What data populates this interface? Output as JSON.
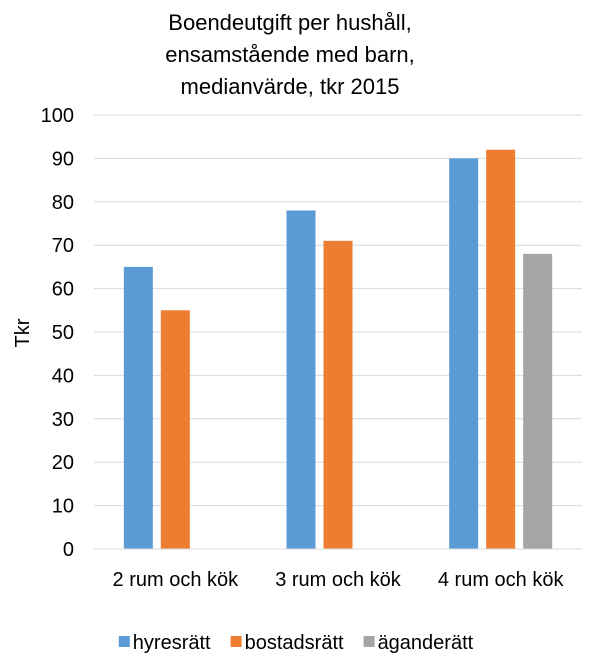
{
  "chart_data": {
    "type": "bar",
    "title_lines": [
      "Boendeutgift per hushåll,",
      "ensamstående med barn,",
      "medianvärde, tkr 2015"
    ],
    "ylabel": "Tkr",
    "xlabel": "",
    "ylim": [
      0,
      100
    ],
    "yticks": [
      0,
      10,
      20,
      30,
      40,
      50,
      60,
      70,
      80,
      90,
      100
    ],
    "grid": true,
    "legend_position": "bottom",
    "categories": [
      "2 rum och kök",
      "3 rum och kök",
      "4 rum och kök"
    ],
    "series": [
      {
        "name": "hyresrätt",
        "color": "#5B9BD5",
        "values": [
          65,
          78,
          90
        ]
      },
      {
        "name": "bostadsrätt",
        "color": "#ED7D31",
        "values": [
          55,
          71,
          92
        ]
      },
      {
        "name": "äganderätt",
        "color": "#A5A5A5",
        "values": [
          null,
          null,
          68
        ]
      }
    ]
  }
}
